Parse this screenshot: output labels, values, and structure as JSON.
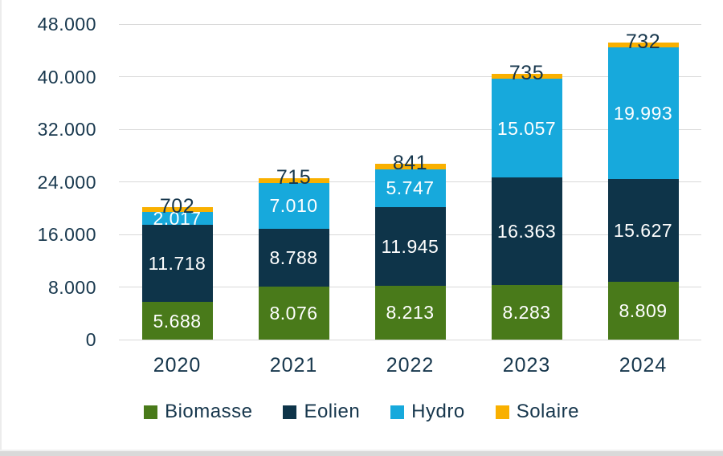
{
  "chart_data": {
    "type": "bar",
    "stacked": true,
    "title": "",
    "xlabel": "",
    "ylabel": "",
    "categories": [
      "2020",
      "2021",
      "2022",
      "2023",
      "2024"
    ],
    "series": [
      {
        "name": "Biomasse",
        "color": "#497a1a",
        "label_position": "inside",
        "values": [
          5688,
          8076,
          8213,
          8283,
          8809
        ],
        "labels": [
          "5.688",
          "8.076",
          "8.213",
          "8.283",
          "8.809"
        ]
      },
      {
        "name": "Eolien",
        "color": "#0e3449",
        "label_position": "inside",
        "values": [
          11718,
          8788,
          11945,
          16363,
          15627
        ],
        "labels": [
          "11.718",
          "8.788",
          "11.945",
          "16.363",
          "15.627"
        ]
      },
      {
        "name": "Hydro",
        "color": "#17a9dc",
        "label_position": "inside",
        "values": [
          2017,
          7010,
          5747,
          15057,
          19993
        ],
        "labels": [
          "2.017",
          "7.010",
          "5.747",
          "15.057",
          "19.993"
        ]
      },
      {
        "name": "Solaire",
        "color": "#f9b000",
        "label_position": "above",
        "values": [
          702,
          715,
          841,
          735,
          732
        ],
        "labels": [
          "702",
          "715",
          "841",
          "735",
          "732"
        ]
      }
    ],
    "y_ticks": [
      {
        "value": 0,
        "label": "0"
      },
      {
        "value": 8000,
        "label": "8.000"
      },
      {
        "value": 16000,
        "label": "16.000"
      },
      {
        "value": 24000,
        "label": "24.000"
      },
      {
        "value": 32000,
        "label": "32.000"
      },
      {
        "value": 40000,
        "label": "40.000"
      },
      {
        "value": 48000,
        "label": "48.000"
      }
    ],
    "ylim": [
      0,
      48000
    ],
    "grid": true,
    "legend_position": "bottom",
    "colors": {
      "grid": "#d9d9d9",
      "tick_text": "#17374d",
      "inside_label_text": "#ffffff",
      "above_label_text": "#17374d",
      "background": "#ffffff",
      "bottom_edge": "#d9d9d9"
    }
  }
}
